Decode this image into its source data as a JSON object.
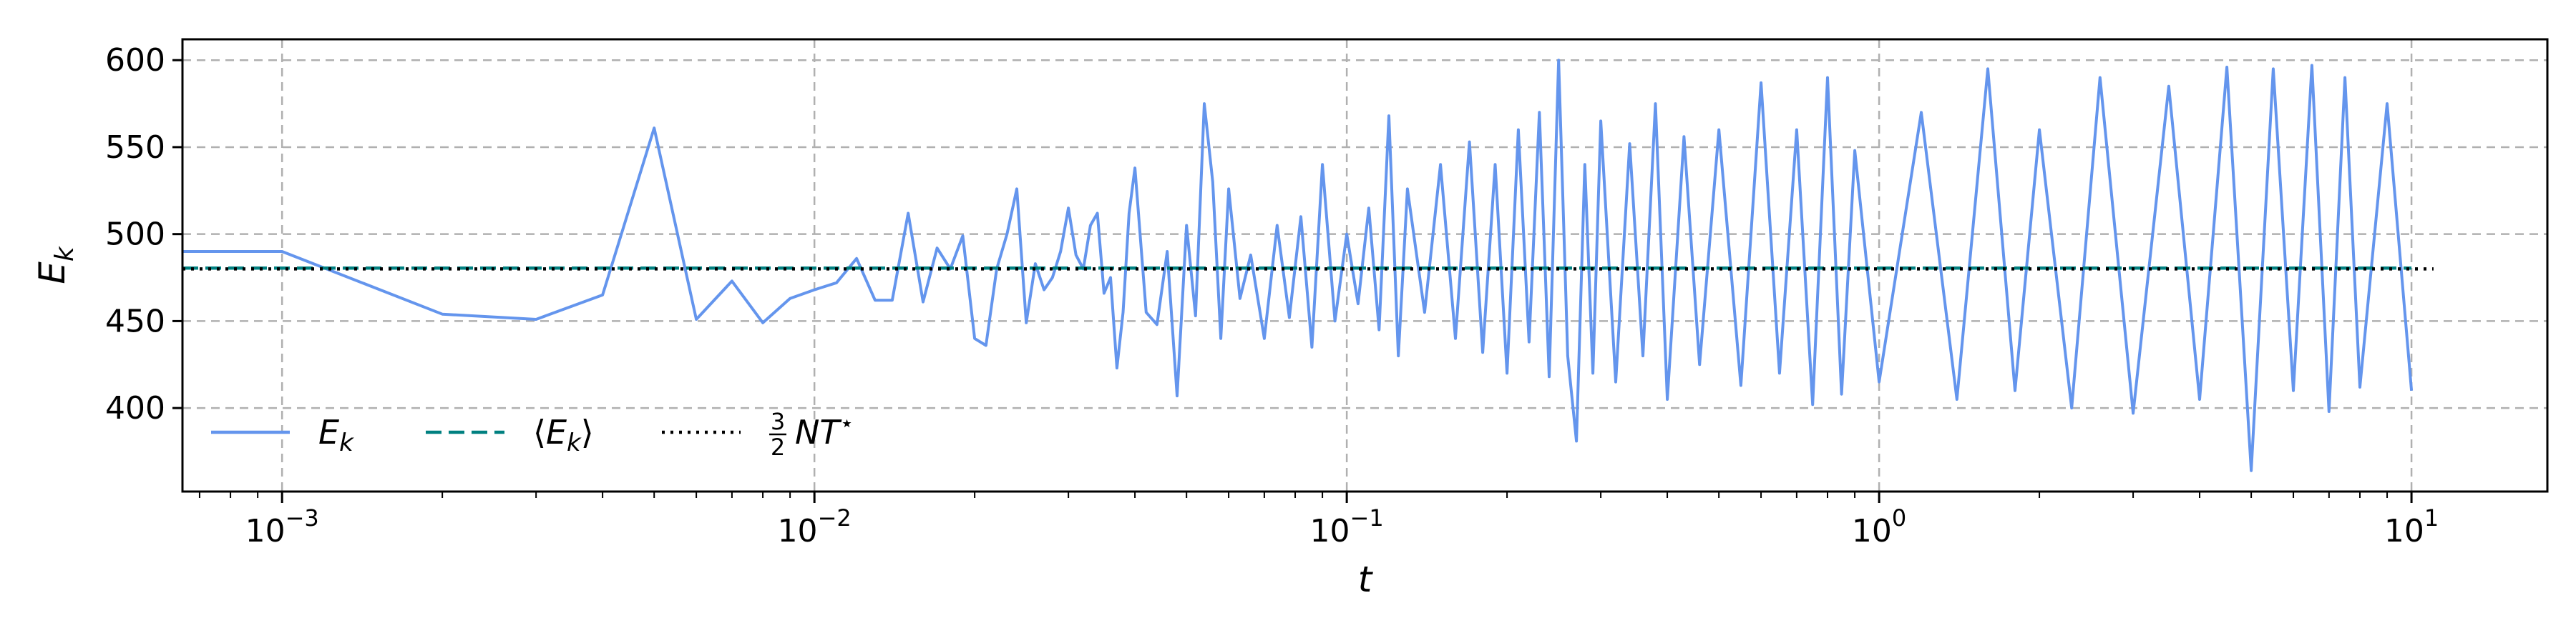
{
  "chart_data": {
    "type": "line",
    "title": "",
    "xlabel": "t",
    "ylabel": "E_k",
    "xscale": "log",
    "xlim": [
      0.00065,
      18
    ],
    "ylim": [
      352,
      612
    ],
    "grid": true,
    "legend": {
      "placement": "lower-left",
      "entries": [
        {
          "label": "E_k",
          "style": "solid",
          "color": "#6495ED"
        },
        {
          "label": "⟨E_k⟩",
          "style": "dashed",
          "color": "#008080"
        },
        {
          "label": "3/2 N T*",
          "style": "dotted",
          "color": "#000000"
        }
      ]
    },
    "x_ticks": [
      {
        "value": 0.001,
        "base": "10",
        "exp": "−3"
      },
      {
        "value": 0.01,
        "base": "10",
        "exp": "−2"
      },
      {
        "value": 0.1,
        "base": "10",
        "exp": "−1"
      },
      {
        "value": 1,
        "base": "10",
        "exp": "0"
      },
      {
        "value": 10,
        "base": "10",
        "exp": "1"
      }
    ],
    "y_ticks": [
      400,
      450,
      500,
      550,
      600
    ],
    "series": [
      {
        "name": "E_k",
        "color": "#6495ED",
        "style": "solid",
        "x": [
          0.00065,
          0.001,
          0.002,
          0.003,
          0.004,
          0.005,
          0.006,
          0.007,
          0.008,
          0.009,
          0.01,
          0.011,
          0.012,
          0.013,
          0.014,
          0.015,
          0.016,
          0.017,
          0.018,
          0.019,
          0.02,
          0.021,
          0.022,
          0.023,
          0.024,
          0.025,
          0.026,
          0.027,
          0.028,
          0.029,
          0.03,
          0.031,
          0.032,
          0.033,
          0.034,
          0.035,
          0.036,
          0.037,
          0.038,
          0.039,
          0.04,
          0.042,
          0.044,
          0.046,
          0.048,
          0.05,
          0.052,
          0.054,
          0.056,
          0.058,
          0.06,
          0.063,
          0.066,
          0.07,
          0.074,
          0.078,
          0.082,
          0.086,
          0.09,
          0.095,
          0.1,
          0.105,
          0.11,
          0.115,
          0.12,
          0.125,
          0.13,
          0.14,
          0.15,
          0.16,
          0.17,
          0.18,
          0.19,
          0.2,
          0.21,
          0.22,
          0.23,
          0.24,
          0.25,
          0.26,
          0.27,
          0.28,
          0.29,
          0.3,
          0.32,
          0.34,
          0.36,
          0.38,
          0.4,
          0.43,
          0.46,
          0.5,
          0.55,
          0.6,
          0.65,
          0.7,
          0.75,
          0.8,
          0.85,
          0.9,
          1.0,
          1.2,
          1.4,
          1.6,
          1.8,
          2.0,
          2.3,
          2.6,
          3.0,
          3.5,
          4.0,
          4.5,
          5.0,
          5.5,
          6.0,
          6.5,
          7.0,
          7.5,
          8.0,
          9.0,
          10.0
        ],
        "y": [
          490,
          490,
          454,
          451,
          465,
          561,
          451,
          473,
          449,
          463,
          468,
          472,
          486,
          462,
          462,
          512,
          461,
          492,
          480,
          499,
          440,
          436,
          480,
          500,
          526,
          449,
          483,
          468,
          475,
          490,
          515,
          488,
          480,
          505,
          512,
          466,
          475,
          423,
          455,
          512,
          538,
          455,
          448,
          490,
          407,
          505,
          453,
          575,
          530,
          440,
          526,
          463,
          488,
          440,
          505,
          452,
          510,
          435,
          540,
          450,
          500,
          460,
          515,
          445,
          568,
          430,
          526,
          455,
          540,
          440,
          553,
          432,
          540,
          420,
          560,
          438,
          570,
          418,
          600,
          430,
          381,
          540,
          420,
          565,
          415,
          552,
          430,
          575,
          405,
          556,
          425,
          560,
          413,
          587,
          420,
          560,
          402,
          590,
          408,
          548,
          415,
          570,
          405,
          595,
          410,
          560,
          400,
          590,
          397,
          585,
          405,
          596,
          364,
          595,
          410,
          597,
          398,
          590,
          412,
          575,
          410
        ]
      },
      {
        "name": "⟨E_k⟩",
        "color": "#008080",
        "style": "dashed",
        "x": [
          0.00065,
          10.0
        ],
        "y": [
          480.5,
          480.5
        ]
      },
      {
        "name": "3/2 N T*",
        "color": "#000000",
        "style": "dotted",
        "x": [
          0.00065,
          11.0
        ],
        "y": [
          480,
          480
        ]
      }
    ]
  }
}
